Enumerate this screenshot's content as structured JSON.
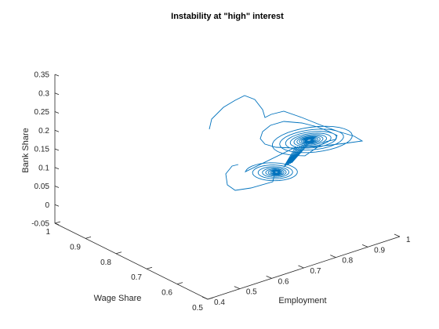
{
  "chart_data": {
    "type": "line3d",
    "title": "Instability at \"high\" interest",
    "xlabel": "Employment",
    "ylabel": "Wage Share",
    "zlabel": "Bank Share",
    "xlim": [
      0.4,
      1.0
    ],
    "ylim": [
      0.5,
      1.0
    ],
    "zlim": [
      -0.05,
      0.35
    ],
    "xticks": [
      "0.4",
      "0.5",
      "0.6",
      "0.7",
      "0.8",
      "0.9",
      "1"
    ],
    "yticks": [
      "0.5",
      "0.6",
      "0.7",
      "0.8",
      "0.9",
      "1"
    ],
    "zticks": [
      "-0.05",
      "0",
      "0.05",
      "0.1",
      "0.15",
      "0.2",
      "0.25",
      "0.3",
      "0.35"
    ],
    "grid": false,
    "line_color": "#0072BD",
    "series": [
      {
        "description": "single trajectory spiralling into a focus, then crossing to a second spiral",
        "start": {
          "employment": 0.66,
          "wage_share": 0.72,
          "bank_share": 0.2
        },
        "focus_a": {
          "employment": 0.84,
          "wage_share": 0.78,
          "bank_share": 0.155
        },
        "focus_b": {
          "employment": 0.73,
          "wage_share": 0.72,
          "bank_share": 0.1
        }
      }
    ]
  }
}
